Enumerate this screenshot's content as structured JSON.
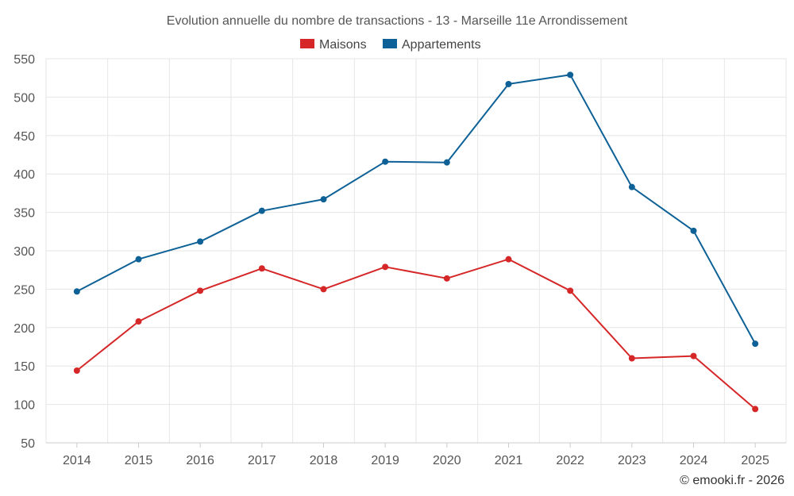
{
  "chart_data": {
    "type": "line",
    "title": "Evolution annuelle du nombre de transactions - 13 - Marseille 11e Arrondissement",
    "categories": [
      "2014",
      "2015",
      "2016",
      "2017",
      "2018",
      "2019",
      "2020",
      "2021",
      "2022",
      "2023",
      "2024",
      "2025"
    ],
    "series": [
      {
        "name": "Maisons",
        "color": "#d62728",
        "values": [
          144,
          208,
          248,
          277,
          250,
          279,
          264,
          289,
          248,
          160,
          163,
          94
        ]
      },
      {
        "name": "Appartements",
        "color": "#0e6196",
        "values": [
          247,
          289,
          312,
          352,
          367,
          416,
          415,
          517,
          529,
          383,
          326,
          179
        ]
      }
    ],
    "ylim": [
      50,
      550
    ],
    "yticks": [
      "550",
      "500",
      "450",
      "400",
      "350",
      "300",
      "250",
      "200",
      "150",
      "100",
      "50"
    ],
    "xlabel": "",
    "ylabel": "",
    "grid": true,
    "legend_position": "top-center"
  },
  "credit": "© emooki.fr - 2026"
}
